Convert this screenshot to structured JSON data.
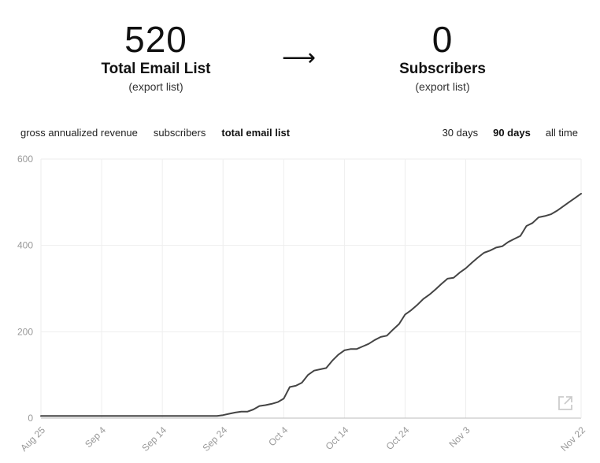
{
  "stats": {
    "left": {
      "value": "520",
      "label": "Total Email List",
      "link": "(export list)"
    },
    "arrow": "⟶",
    "right": {
      "value": "0",
      "label": "Subscribers",
      "link": "(export list)"
    }
  },
  "metric_tabs": [
    {
      "label": "gross annualized revenue",
      "active": false
    },
    {
      "label": "subscribers",
      "active": false
    },
    {
      "label": "total email list",
      "active": true
    }
  ],
  "range_tabs": [
    {
      "label": "30 days",
      "active": false
    },
    {
      "label": "90 days",
      "active": true
    },
    {
      "label": "all time",
      "active": false
    }
  ],
  "icons": {
    "expand": "external-link-icon"
  },
  "colors": {
    "line": "#444444",
    "grid": "#eeeeee",
    "axis": "#bbbbbb",
    "tick_text": "#999999",
    "icon": "#cccccc"
  },
  "chart_data": {
    "type": "line",
    "title": "",
    "xlabel": "",
    "ylabel": "",
    "ylim": [
      0,
      600
    ],
    "yticks": [
      0,
      200,
      400,
      600
    ],
    "xlim": [
      "2024-08-25",
      "2024-11-22"
    ],
    "xticks": [
      "Aug 25",
      "Sep 4",
      "Sep 14",
      "Sep 24",
      "Oct 4",
      "Oct 14",
      "Oct 24",
      "Nov 3",
      "Nov 22"
    ],
    "xtick_dates": [
      "2024-08-25",
      "2024-09-04",
      "2024-09-14",
      "2024-09-24",
      "2024-10-04",
      "2024-10-14",
      "2024-10-24",
      "2024-11-03",
      "2024-11-22"
    ],
    "grid": true,
    "series": [
      {
        "points": [
          [
            "2024-08-25",
            5
          ],
          [
            "2024-09-01",
            5
          ],
          [
            "2024-09-10",
            5
          ],
          [
            "2024-09-18",
            5
          ],
          [
            "2024-09-23",
            5
          ],
          [
            "2024-09-24",
            7
          ],
          [
            "2024-09-25",
            10
          ],
          [
            "2024-09-26",
            13
          ],
          [
            "2024-09-27",
            15
          ],
          [
            "2024-09-28",
            15
          ],
          [
            "2024-09-29",
            20
          ],
          [
            "2024-09-30",
            28
          ],
          [
            "2024-10-01",
            30
          ],
          [
            "2024-10-02",
            33
          ],
          [
            "2024-10-03",
            37
          ],
          [
            "2024-10-04",
            45
          ],
          [
            "2024-10-05",
            72
          ],
          [
            "2024-10-06",
            75
          ],
          [
            "2024-10-07",
            82
          ],
          [
            "2024-10-08",
            100
          ],
          [
            "2024-10-09",
            110
          ],
          [
            "2024-10-10",
            113
          ],
          [
            "2024-10-11",
            116
          ],
          [
            "2024-10-12",
            133
          ],
          [
            "2024-10-13",
            147
          ],
          [
            "2024-10-14",
            157
          ],
          [
            "2024-10-15",
            160
          ],
          [
            "2024-10-16",
            160
          ],
          [
            "2024-10-17",
            166
          ],
          [
            "2024-10-18",
            172
          ],
          [
            "2024-10-19",
            181
          ],
          [
            "2024-10-20",
            188
          ],
          [
            "2024-10-21",
            191
          ],
          [
            "2024-10-22",
            205
          ],
          [
            "2024-10-23",
            218
          ],
          [
            "2024-10-24",
            240
          ],
          [
            "2024-10-25",
            250
          ],
          [
            "2024-10-26",
            262
          ],
          [
            "2024-10-27",
            276
          ],
          [
            "2024-10-28",
            286
          ],
          [
            "2024-10-29",
            298
          ],
          [
            "2024-10-30",
            311
          ],
          [
            "2024-10-31",
            323
          ],
          [
            "2024-11-01",
            325
          ],
          [
            "2024-11-02",
            337
          ],
          [
            "2024-11-03",
            347
          ],
          [
            "2024-11-04",
            360
          ],
          [
            "2024-11-05",
            372
          ],
          [
            "2024-11-06",
            383
          ],
          [
            "2024-11-07",
            388
          ],
          [
            "2024-11-08",
            395
          ],
          [
            "2024-11-09",
            398
          ],
          [
            "2024-11-10",
            408
          ],
          [
            "2024-11-11",
            415
          ],
          [
            "2024-11-12",
            422
          ],
          [
            "2024-11-13",
            445
          ],
          [
            "2024-11-14",
            452
          ],
          [
            "2024-11-15",
            465
          ],
          [
            "2024-11-16",
            468
          ],
          [
            "2024-11-17",
            472
          ],
          [
            "2024-11-18",
            480
          ],
          [
            "2024-11-19",
            490
          ],
          [
            "2024-11-20",
            500
          ],
          [
            "2024-11-21",
            510
          ],
          [
            "2024-11-22",
            520
          ]
        ]
      }
    ]
  }
}
